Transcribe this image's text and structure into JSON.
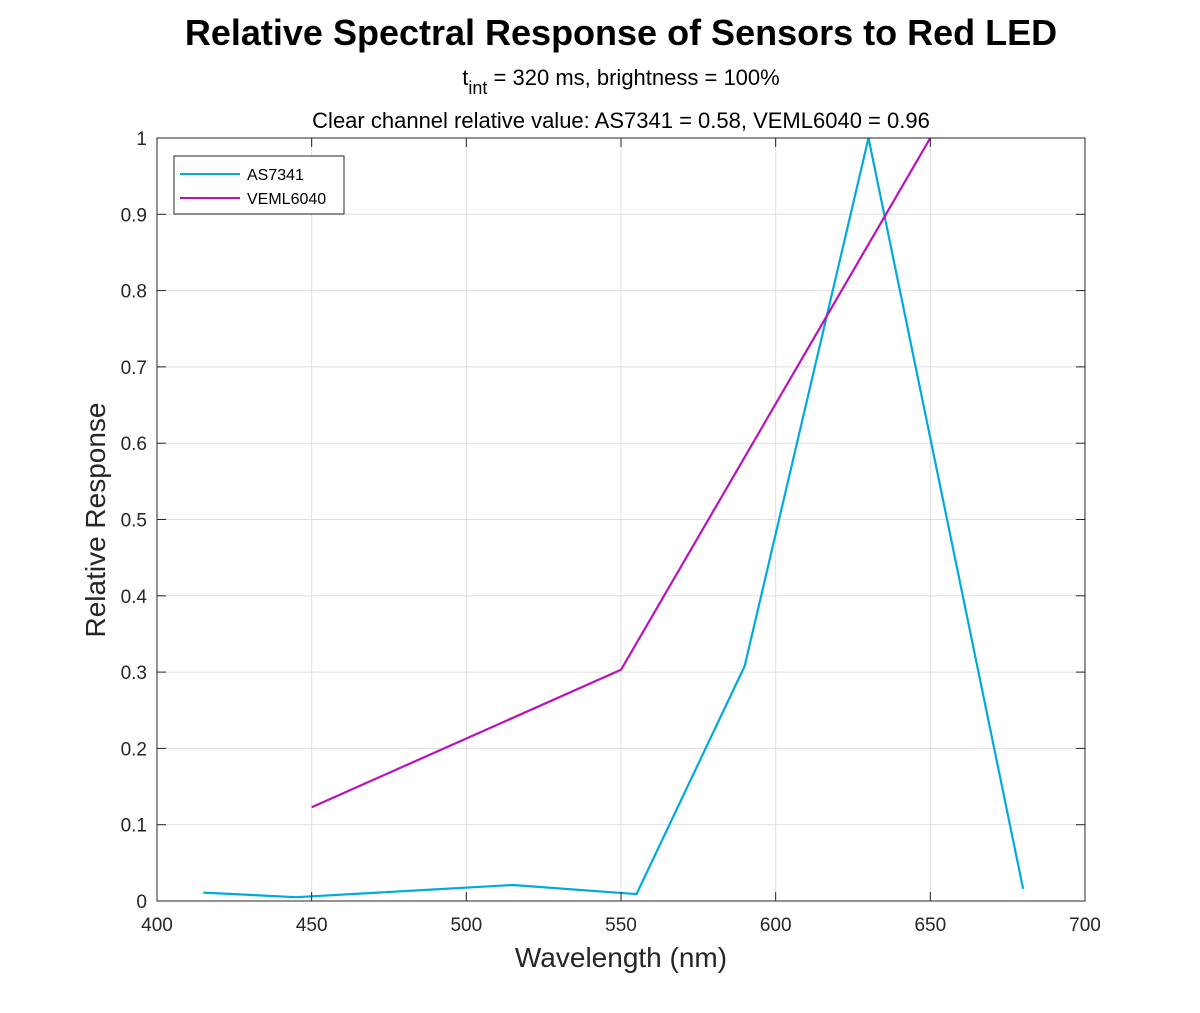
{
  "chart_data": {
    "type": "line",
    "title": "Relative Spectral Response of Sensors to Red LED",
    "subtitle_line1": {
      "base": "t",
      "subscript": "int",
      "rest": " = 320 ms, brightness = 100%"
    },
    "subtitle_line2": "Clear channel relative value: AS7341 = 0.58, VEML6040 = 0.96",
    "xlabel": "Wavelength (nm)",
    "ylabel": "Relative Response",
    "xlim": [
      400,
      700
    ],
    "ylim": [
      0,
      1
    ],
    "x_ticks": [
      "400",
      "450",
      "500",
      "550",
      "600",
      "650",
      "700"
    ],
    "y_ticks": [
      "0",
      "0.1",
      "0.2",
      "0.3",
      "0.4",
      "0.5",
      "0.6",
      "0.7",
      "0.8",
      "0.9",
      "1"
    ],
    "grid": true,
    "legend_position": "top-left",
    "series": [
      {
        "name": "AS7341",
        "color": "#00aadd",
        "x": [
          415,
          445,
          515,
          555,
          590,
          630,
          680
        ],
        "y": [
          0.011,
          0.005,
          0.021,
          0.009,
          0.308,
          1.0,
          0.016
        ]
      },
      {
        "name": "VEML6040",
        "color": "#bb11bb",
        "x": [
          450,
          550,
          650
        ],
        "y": [
          0.123,
          0.303,
          1.0
        ]
      }
    ]
  }
}
